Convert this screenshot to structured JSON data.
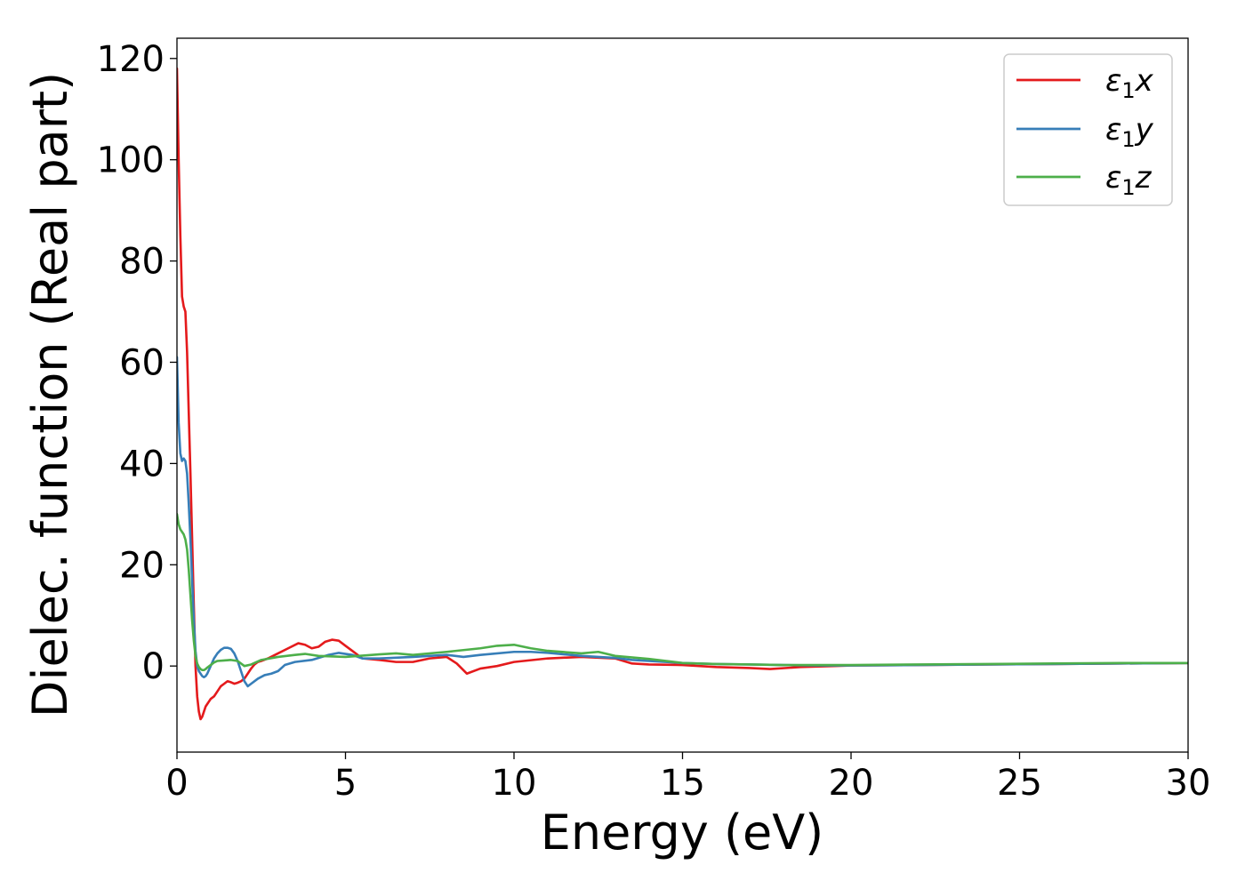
{
  "chart_data": {
    "type": "line",
    "title": "",
    "xlabel": "Energy (eV)",
    "ylabel": "Dielec. function (Real part)",
    "xlim": [
      0,
      30
    ],
    "ylim": [
      -17,
      124
    ],
    "xticks": [
      0,
      5,
      10,
      15,
      20,
      25,
      30
    ],
    "yticks": [
      0,
      20,
      40,
      60,
      80,
      100,
      120
    ],
    "grid": false,
    "legend_position": "top-right",
    "series": [
      {
        "name": "ε₁x",
        "legend_base": "ε",
        "legend_sub": "1",
        "legend_suffix": "x",
        "color": "#e41a1c",
        "x": [
          0,
          0.05,
          0.1,
          0.15,
          0.2,
          0.25,
          0.3,
          0.35,
          0.4,
          0.45,
          0.5,
          0.55,
          0.6,
          0.65,
          0.7,
          0.75,
          0.8,
          0.85,
          0.9,
          0.95,
          1.0,
          1.1,
          1.2,
          1.3,
          1.4,
          1.5,
          1.6,
          1.7,
          1.8,
          1.9,
          2.0,
          2.1,
          2.2,
          2.3,
          2.4,
          2.5,
          2.7,
          3.0,
          3.3,
          3.6,
          3.8,
          4.0,
          4.2,
          4.4,
          4.6,
          4.8,
          5.0,
          5.2,
          5.5,
          6.0,
          6.5,
          7.0,
          7.5,
          8.0,
          8.3,
          8.6,
          9.0,
          9.5,
          10.0,
          11.0,
          12.0,
          13.0,
          13.5,
          14.0,
          15.0,
          16.0,
          17.0,
          17.6,
          18.5,
          19.5,
          20.0,
          22.0,
          24.0,
          26.0,
          28.0,
          30.0
        ],
        "y": [
          118,
          100,
          85,
          73,
          71,
          70,
          62,
          50,
          38,
          25,
          12,
          0,
          -6,
          -9,
          -10.5,
          -10,
          -9,
          -8,
          -7.5,
          -7,
          -6.5,
          -6,
          -5,
          -4,
          -3.5,
          -3,
          -3.2,
          -3.5,
          -3.3,
          -3,
          -2.5,
          -1.5,
          -0.5,
          0.3,
          0.8,
          1.0,
          1.5,
          2.5,
          3.5,
          4.5,
          4.2,
          3.5,
          3.8,
          4.8,
          5.2,
          5.0,
          4.0,
          3.0,
          1.5,
          1.2,
          0.8,
          0.8,
          1.5,
          1.8,
          0.5,
          -1.5,
          -0.5,
          0.0,
          0.8,
          1.5,
          1.8,
          1.5,
          0.5,
          0.3,
          0.2,
          -0.2,
          -0.4,
          -0.6,
          -0.2,
          0.0,
          0.1,
          0.2,
          0.3,
          0.4,
          0.5,
          0.6
        ]
      },
      {
        "name": "ε₁y",
        "legend_base": "ε",
        "legend_sub": "1",
        "legend_suffix": "y",
        "color": "#377eb8",
        "x": [
          0,
          0.05,
          0.1,
          0.15,
          0.2,
          0.25,
          0.3,
          0.35,
          0.4,
          0.45,
          0.5,
          0.55,
          0.6,
          0.65,
          0.7,
          0.75,
          0.8,
          0.85,
          0.9,
          1.0,
          1.1,
          1.2,
          1.3,
          1.4,
          1.5,
          1.6,
          1.7,
          1.8,
          1.9,
          2.0,
          2.1,
          2.2,
          2.4,
          2.6,
          2.8,
          3.0,
          3.2,
          3.5,
          4.0,
          4.5,
          4.8,
          5.2,
          5.5,
          6.0,
          7.0,
          8.0,
          8.5,
          9.0,
          10.0,
          10.5,
          11.0,
          12.0,
          13.0,
          13.5,
          14.0,
          15.0,
          16.0,
          17.0,
          18.0,
          19.0,
          20.0,
          22.0,
          24.0,
          26.0,
          28.0,
          30.0
        ],
        "y": [
          61,
          48,
          42,
          40.5,
          41,
          40.5,
          38,
          32,
          25,
          17,
          9,
          3,
          0,
          -1,
          -1.5,
          -2,
          -2.2,
          -2,
          -1.5,
          0,
          1.5,
          2.5,
          3.2,
          3.6,
          3.6,
          3.4,
          2.5,
          1.0,
          -1.0,
          -3.0,
          -4.0,
          -3.5,
          -2.5,
          -1.8,
          -1.5,
          -1.0,
          0.2,
          0.8,
          1.2,
          2.2,
          2.6,
          2.2,
          1.5,
          1.5,
          1.8,
          2.2,
          1.8,
          2.2,
          2.8,
          2.8,
          2.6,
          2.0,
          1.6,
          1.2,
          1.0,
          0.6,
          0.4,
          0.3,
          0.2,
          0.1,
          0.1,
          0.2,
          0.3,
          0.4,
          0.5,
          0.6
        ]
      },
      {
        "name": "ε₁z",
        "legend_base": "ε",
        "legend_sub": "1",
        "legend_suffix": "z",
        "color": "#4daf4a",
        "x": [
          0,
          0.05,
          0.1,
          0.15,
          0.2,
          0.25,
          0.3,
          0.35,
          0.4,
          0.45,
          0.5,
          0.55,
          0.6,
          0.65,
          0.7,
          0.75,
          0.8,
          0.85,
          0.9,
          1.0,
          1.1,
          1.2,
          1.4,
          1.6,
          1.8,
          2.0,
          2.2,
          2.5,
          3.0,
          3.5,
          3.8,
          4.2,
          5.0,
          6.0,
          6.5,
          7.0,
          8.0,
          9.0,
          9.5,
          10.0,
          10.5,
          11.0,
          12.0,
          12.5,
          13.0,
          14.0,
          15.0,
          16.0,
          17.0,
          18.0,
          19.0,
          20.0,
          22.0,
          24.0,
          26.0,
          28.0,
          30.0
        ],
        "y": [
          30,
          28,
          27,
          26.5,
          26,
          25,
          23,
          19,
          14,
          9,
          5,
          2,
          0.5,
          -0.2,
          -0.6,
          -0.8,
          -0.8,
          -0.6,
          -0.3,
          0.2,
          0.7,
          1.0,
          1.1,
          1.2,
          1.0,
          0.0,
          0.3,
          1.2,
          1.8,
          2.2,
          2.4,
          2.0,
          1.8,
          2.3,
          2.5,
          2.2,
          2.8,
          3.5,
          4.0,
          4.2,
          3.5,
          3.0,
          2.5,
          2.8,
          2.0,
          1.4,
          0.6,
          0.4,
          0.3,
          0.2,
          0.2,
          0.2,
          0.3,
          0.4,
          0.5,
          0.6,
          0.6
        ]
      }
    ]
  }
}
